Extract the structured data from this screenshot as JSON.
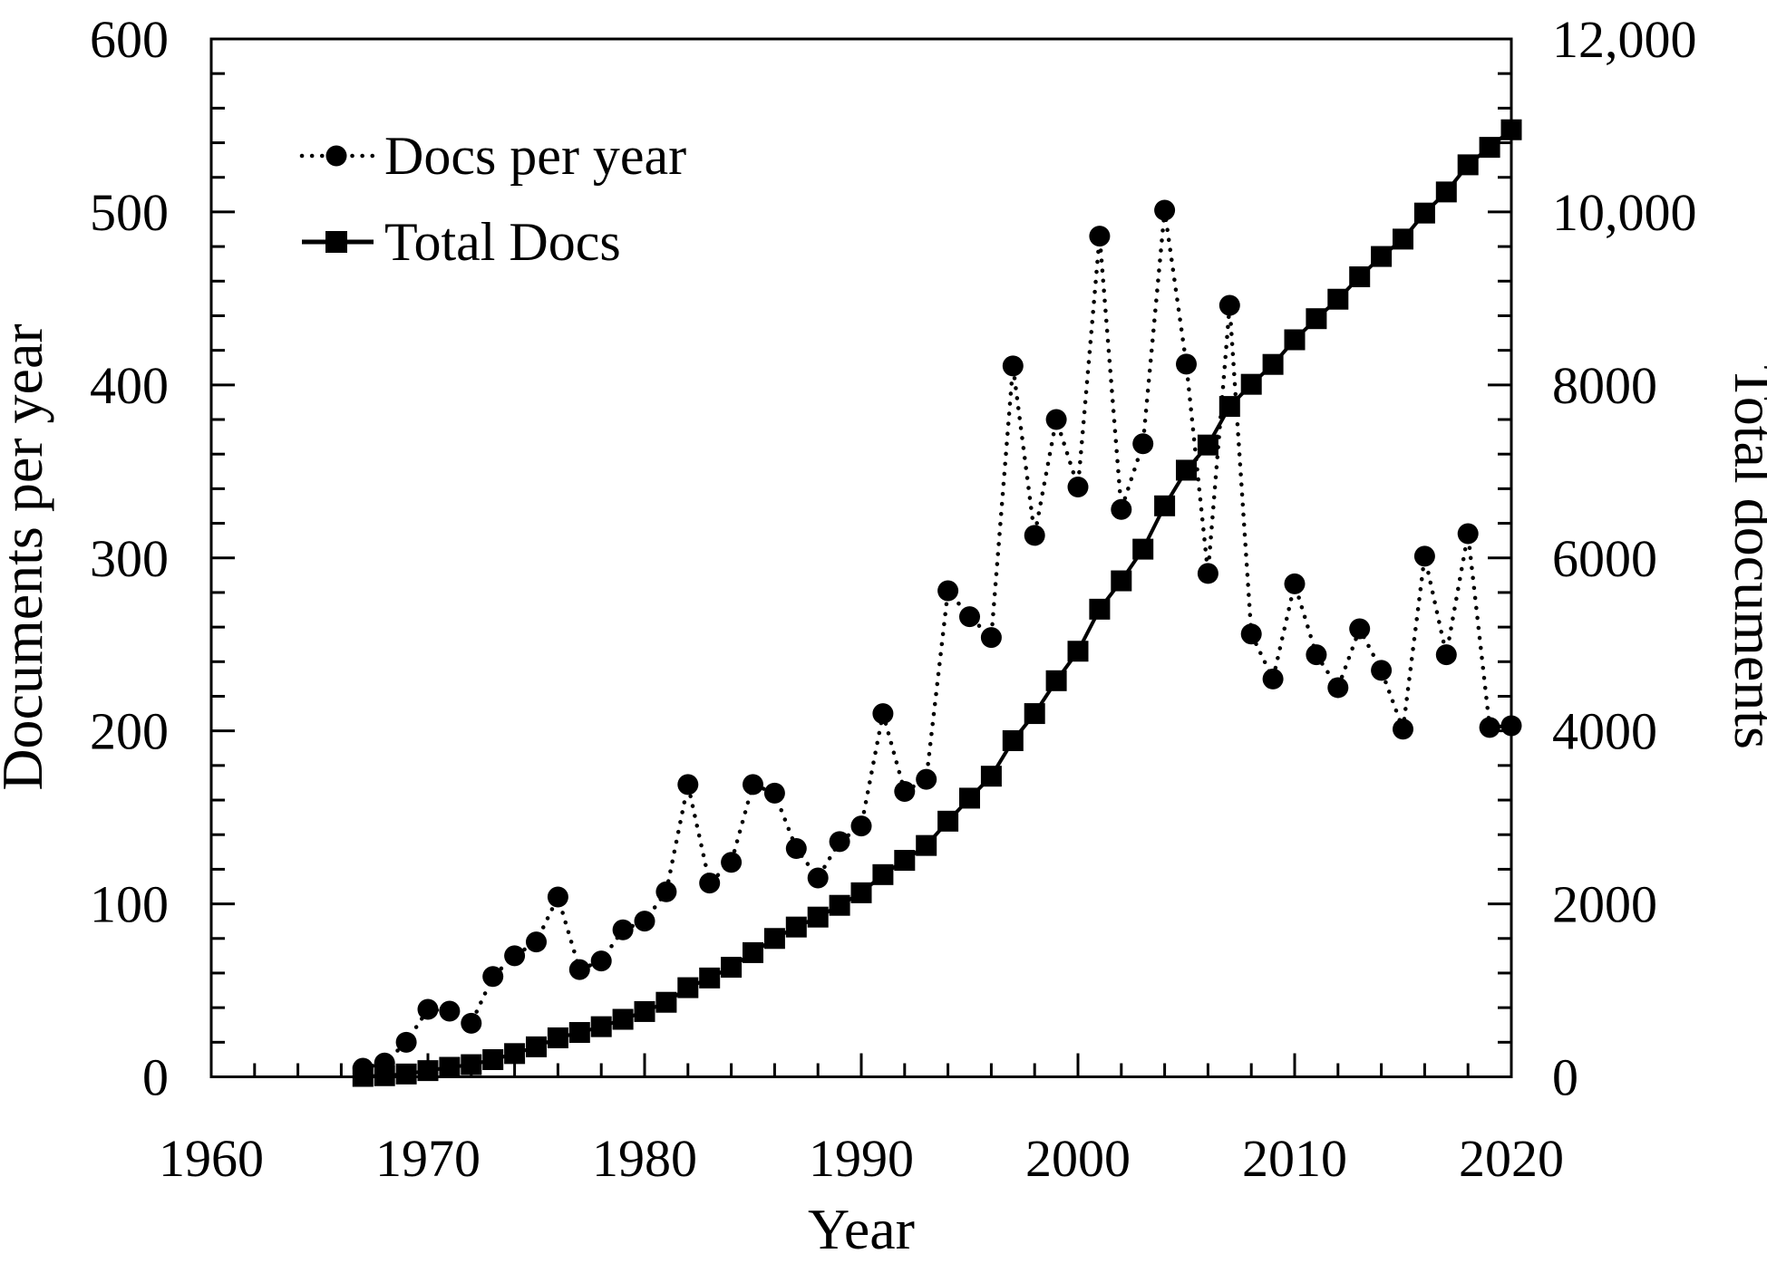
{
  "figure": {
    "background": "#ffffff",
    "ink": "#000000"
  },
  "chart_data": {
    "type": "line",
    "title": "",
    "xlabel": "Year",
    "ylabel_left": "Documents per year",
    "ylabel_right": "Total documents",
    "x_range": [
      1960,
      2020
    ],
    "y_left_range": [
      0,
      600
    ],
    "y_right_range": [
      0,
      12000
    ],
    "x_tick_labels": [
      "1960",
      "1970",
      "1980",
      "1990",
      "2000",
      "2010",
      "2020"
    ],
    "x_major_step": 10,
    "x_minor_step": 2,
    "y_left_tick_labels": [
      "0",
      "100",
      "200",
      "300",
      "400",
      "500",
      "600"
    ],
    "y_left_major_step": 100,
    "y_left_minor_step": 20,
    "y_right_tick_labels": [
      "0",
      "2000",
      "4000",
      "6000",
      "8000",
      "10,000",
      "12,000"
    ],
    "y_right_major_step": 2000,
    "y_right_minor_step": 400,
    "grid": false,
    "legend_position": "top-left-inside",
    "years": [
      1967,
      1968,
      1969,
      1970,
      1971,
      1972,
      1973,
      1974,
      1975,
      1976,
      1977,
      1978,
      1979,
      1980,
      1981,
      1982,
      1983,
      1984,
      1985,
      1986,
      1987,
      1988,
      1989,
      1990,
      1991,
      1992,
      1993,
      1994,
      1995,
      1996,
      1997,
      1998,
      1999,
      2000,
      2001,
      2002,
      2003,
      2004,
      2005,
      2006,
      2007,
      2008,
      2009,
      2010,
      2011,
      2012,
      2013,
      2014,
      2015,
      2016,
      2017,
      2018,
      2019,
      2020
    ],
    "series": [
      {
        "name": "Docs per year",
        "axis": "left",
        "marker": "circle",
        "line_style": "dotted",
        "values": [
          5,
          8,
          20,
          39,
          38,
          31,
          58,
          70,
          78,
          104,
          62,
          67,
          85,
          90,
          107,
          169,
          112,
          124,
          169,
          164,
          132,
          115,
          136,
          145,
          210,
          165,
          172,
          281,
          266,
          254,
          411,
          313,
          380,
          341,
          486,
          328,
          366,
          501,
          412,
          291,
          446,
          256,
          230,
          285,
          244,
          225,
          259,
          235,
          201,
          301,
          244,
          314,
          202,
          203
        ]
      },
      {
        "name": "Total Docs",
        "axis": "right",
        "marker": "square",
        "line_style": "solid",
        "values": [
          5,
          13,
          33,
          72,
          110,
          141,
          199,
          269,
          347,
          451,
          513,
          580,
          665,
          755,
          862,
          1031,
          1143,
          1267,
          1436,
          1600,
          1732,
          1847,
          1983,
          2128,
          2338,
          2503,
          2675,
          2956,
          3222,
          3476,
          3887,
          4200,
          4580,
          4921,
          5407,
          5735,
          6101,
          6602,
          7014,
          7305,
          7751,
          8007,
          8237,
          8522,
          8766,
          8991,
          9250,
          9485,
          9686,
          9987,
          10231,
          10545,
          10747,
          10950
        ]
      }
    ]
  }
}
